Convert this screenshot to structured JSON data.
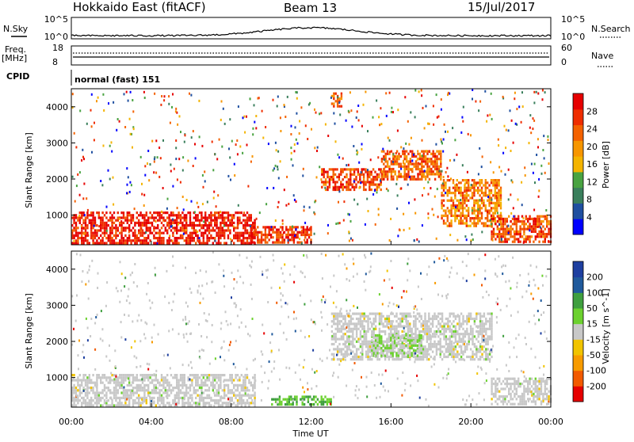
{
  "header": {
    "station": "Hokkaido East (fitACF)",
    "beam": "Beam 13",
    "date": "15/Jul/2017"
  },
  "panels": {
    "nsky_label": "N.Sky",
    "nsky_ticks": [
      "10^5",
      "10^0"
    ],
    "nsearch_label": "N.Search",
    "nsearch_ticks": [
      "10^5",
      "10^0"
    ],
    "freq_label_1": "Freq.",
    "freq_label_2": "[MHz]",
    "freq_ticks": [
      "18",
      "8"
    ],
    "nave_label": "Nave",
    "nave_ticks": [
      "60",
      "0"
    ],
    "cpid_label": "CPID",
    "cpid_value": "normal (fast) 151"
  },
  "colors": {
    "power": [
      "#0000ff",
      "#1f4fa0",
      "#3a7f5c",
      "#49a341",
      "#f4b400",
      "#f79600",
      "#f46200",
      "#ef2d00",
      "#e60000"
    ],
    "velocity": [
      "#e60000",
      "#f25a00",
      "#f79b00",
      "#f1c400",
      "#c8c8c8",
      "#6cd12f",
      "#3f9f3f",
      "#205a9c",
      "#1e3fa0"
    ]
  },
  "time_axis": {
    "label": "Time UT",
    "ticks": [
      "00:00",
      "04:00",
      "08:00",
      "12:00",
      "16:00",
      "20:00",
      "00:00"
    ]
  },
  "chart_data": [
    {
      "type": "heatmap",
      "name_panel": "power",
      "ylabel": "Slant Range [km]",
      "xlabel": "",
      "x_range_hours": [
        0,
        24
      ],
      "ylim_km": [
        180,
        4500
      ],
      "y_ticks": [
        1000,
        2000,
        3000,
        4000
      ],
      "colorbar_label": "Power [dB]",
      "colorbar_ticks": [
        "4",
        "8",
        "12",
        "16",
        "20",
        "24",
        "28"
      ],
      "colorbar_range": [
        0,
        30
      ],
      "echo_regions": [
        {
          "t0": 0.0,
          "t1": 9.2,
          "r0": 250,
          "r1": 1100,
          "value": 27
        },
        {
          "t0": 9.0,
          "t1": 12.0,
          "r0": 250,
          "r1": 700,
          "value": 25
        },
        {
          "t0": 12.5,
          "t1": 15.5,
          "r0": 1700,
          "r1": 2300,
          "value": 24
        },
        {
          "t0": 15.5,
          "t1": 18.5,
          "r0": 2000,
          "r1": 2800,
          "value": 22
        },
        {
          "t0": 18.5,
          "t1": 21.5,
          "r0": 700,
          "r1": 2000,
          "value": 20
        },
        {
          "t0": 21.0,
          "t1": 24.0,
          "r0": 250,
          "r1": 1000,
          "value": 24
        },
        {
          "t0": 13.0,
          "t1": 13.5,
          "r0": 4000,
          "r1": 4400,
          "value": 22
        }
      ]
    },
    {
      "type": "heatmap",
      "name_panel": "velocity",
      "ylabel": "Slant Range [km]",
      "xlabel": "Time UT",
      "x_range_hours": [
        0,
        24
      ],
      "ylim_km": [
        180,
        4500
      ],
      "y_ticks": [
        1000,
        2000,
        3000,
        4000
      ],
      "colorbar_label": "Velocity [m s^-1]",
      "colorbar_ticks": [
        "-200",
        "-100",
        "-50",
        "-15",
        "15",
        "50",
        "100",
        "200"
      ],
      "colorbar_range": [
        -250,
        250
      ],
      "echo_regions": [
        {
          "t0": 0.0,
          "t1": 9.2,
          "r0": 250,
          "r1": 1100,
          "value": 0
        },
        {
          "t0": 10.0,
          "t1": 13.0,
          "r0": 250,
          "r1": 500,
          "value": 80
        },
        {
          "t0": 13.0,
          "t1": 21.0,
          "r0": 1500,
          "r1": 2800,
          "value": 0
        },
        {
          "t0": 15.0,
          "t1": 17.5,
          "r0": 1600,
          "r1": 2200,
          "value": 30
        },
        {
          "t0": 21.0,
          "t1": 24.0,
          "r0": 250,
          "r1": 1000,
          "value": 0
        }
      ]
    }
  ]
}
